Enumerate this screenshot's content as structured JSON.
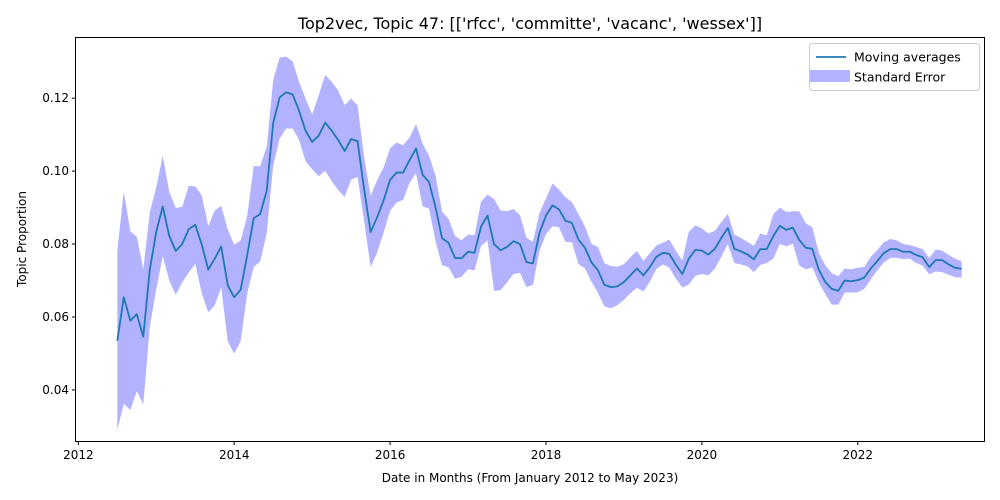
{
  "chart_data": {
    "type": "line",
    "title": "Top2vec, Topic 47: [['rfcc', 'committe', 'vacanc', 'wessex']]",
    "xlabel": "Date in Months (From January 2012 to May 2023)",
    "ylabel": "Topic Proportion",
    "xlim": [
      2011.97,
      2023.62
    ],
    "ylim": [
      0.026,
      0.1365
    ],
    "x_ticks": [
      2012,
      2014,
      2016,
      2018,
      2020,
      2022
    ],
    "y_ticks": [
      0.04,
      0.06,
      0.08,
      0.1,
      0.12
    ],
    "y_tick_labels": [
      "0.04",
      "0.06",
      "0.08",
      "0.10",
      "0.12"
    ],
    "legend": {
      "position": "top-right",
      "entries": [
        "Moving averages",
        "Standard Error"
      ]
    },
    "colors": {
      "line": "#1f77b4",
      "band": "#0000ff",
      "band_opacity": 0.3
    },
    "series": [
      {
        "name": "Moving averages",
        "x": [
          2012.5,
          2012.583,
          2012.667,
          2012.75,
          2012.833,
          2012.917,
          2013.0,
          2013.083,
          2013.167,
          2013.25,
          2013.333,
          2013.417,
          2013.5,
          2013.583,
          2013.667,
          2013.75,
          2013.833,
          2013.917,
          2014.0,
          2014.083,
          2014.167,
          2014.25,
          2014.333,
          2014.417,
          2014.5,
          2014.583,
          2014.667,
          2014.75,
          2014.833,
          2014.917,
          2015.0,
          2015.083,
          2015.167,
          2015.25,
          2015.333,
          2015.417,
          2015.5,
          2015.583,
          2015.667,
          2015.75,
          2015.833,
          2015.917,
          2016.0,
          2016.083,
          2016.167,
          2016.25,
          2016.333,
          2016.417,
          2016.5,
          2016.583,
          2016.667,
          2016.75,
          2016.833,
          2016.917,
          2017.0,
          2017.083,
          2017.167,
          2017.25,
          2017.333,
          2017.417,
          2017.5,
          2017.583,
          2017.667,
          2017.75,
          2017.833,
          2017.917,
          2018.0,
          2018.083,
          2018.167,
          2018.25,
          2018.333,
          2018.417,
          2018.5,
          2018.583,
          2018.667,
          2018.75,
          2018.833,
          2018.917,
          2019.0,
          2019.083,
          2019.167,
          2019.25,
          2019.333,
          2019.417,
          2019.5,
          2019.583,
          2019.667,
          2019.75,
          2019.833,
          2019.917,
          2020.0,
          2020.083,
          2020.167,
          2020.25,
          2020.333,
          2020.417,
          2020.5,
          2020.583,
          2020.667,
          2020.75,
          2020.833,
          2020.917,
          2021.0,
          2021.083,
          2021.167,
          2021.25,
          2021.333,
          2021.417,
          2021.5,
          2021.583,
          2021.667,
          2021.75,
          2021.833,
          2021.917,
          2022.0,
          2022.083,
          2022.167,
          2022.25,
          2022.333,
          2022.417,
          2022.5,
          2022.583,
          2022.667,
          2022.75,
          2022.833,
          2022.917,
          2023.0,
          2023.083,
          2023.167,
          2023.25,
          2023.333
        ],
        "y": [
          0.0535,
          0.0654,
          0.059,
          0.0608,
          0.0546,
          0.073,
          0.0834,
          0.0903,
          0.0822,
          0.0781,
          0.08,
          0.0841,
          0.0853,
          0.0799,
          0.073,
          0.076,
          0.0793,
          0.0687,
          0.0654,
          0.0675,
          0.077,
          0.0871,
          0.0882,
          0.0946,
          0.1132,
          0.1202,
          0.1216,
          0.121,
          0.1165,
          0.111,
          0.108,
          0.1097,
          0.1133,
          0.1111,
          0.1086,
          0.1055,
          0.1088,
          0.1082,
          0.095,
          0.0833,
          0.0873,
          0.092,
          0.0976,
          0.0996,
          0.0996,
          0.103,
          0.1062,
          0.099,
          0.097,
          0.09,
          0.0816,
          0.0803,
          0.0762,
          0.0761,
          0.0779,
          0.0776,
          0.0848,
          0.0878,
          0.08,
          0.0783,
          0.0792,
          0.0808,
          0.08,
          0.075,
          0.0747,
          0.0831,
          0.0878,
          0.0906,
          0.0895,
          0.0864,
          0.0858,
          0.0812,
          0.079,
          0.075,
          0.0728,
          0.0688,
          0.0682,
          0.0684,
          0.0696,
          0.0714,
          0.0733,
          0.0714,
          0.0737,
          0.0765,
          0.0776,
          0.0773,
          0.0743,
          0.0718,
          0.076,
          0.0784,
          0.0782,
          0.0771,
          0.0787,
          0.0817,
          0.0844,
          0.0787,
          0.078,
          0.0772,
          0.0758,
          0.0786,
          0.0786,
          0.0822,
          0.085,
          0.0839,
          0.0845,
          0.0811,
          0.079,
          0.0787,
          0.073,
          0.0696,
          0.0677,
          0.0672,
          0.07,
          0.0698,
          0.0701,
          0.0708,
          0.0733,
          0.0753,
          0.0775,
          0.0786,
          0.0786,
          0.0779,
          0.0779,
          0.077,
          0.0764,
          0.0737,
          0.0756,
          0.0756,
          0.0744,
          0.0735,
          0.0732
        ]
      },
      {
        "name": "Standard Error",
        "x": [
          2012.5,
          2012.583,
          2012.667,
          2012.75,
          2012.833,
          2012.917,
          2013.0,
          2013.083,
          2013.167,
          2013.25,
          2013.333,
          2013.417,
          2013.5,
          2013.583,
          2013.667,
          2013.75,
          2013.833,
          2013.917,
          2014.0,
          2014.083,
          2014.167,
          2014.25,
          2014.333,
          2014.417,
          2014.5,
          2014.583,
          2014.667,
          2014.75,
          2014.833,
          2014.917,
          2015.0,
          2015.083,
          2015.167,
          2015.25,
          2015.333,
          2015.417,
          2015.5,
          2015.583,
          2015.667,
          2015.75,
          2015.833,
          2015.917,
          2016.0,
          2016.083,
          2016.167,
          2016.25,
          2016.333,
          2016.417,
          2016.5,
          2016.583,
          2016.667,
          2016.75,
          2016.833,
          2016.917,
          2017.0,
          2017.083,
          2017.167,
          2017.25,
          2017.333,
          2017.417,
          2017.5,
          2017.583,
          2017.667,
          2017.75,
          2017.833,
          2017.917,
          2018.0,
          2018.083,
          2018.167,
          2018.25,
          2018.333,
          2018.417,
          2018.5,
          2018.583,
          2018.667,
          2018.75,
          2018.833,
          2018.917,
          2019.0,
          2019.083,
          2019.167,
          2019.25,
          2019.333,
          2019.417,
          2019.5,
          2019.583,
          2019.667,
          2019.75,
          2019.833,
          2019.917,
          2020.0,
          2020.083,
          2020.167,
          2020.25,
          2020.333,
          2020.417,
          2020.5,
          2020.583,
          2020.667,
          2020.75,
          2020.833,
          2020.917,
          2021.0,
          2021.083,
          2021.167,
          2021.25,
          2021.333,
          2021.417,
          2021.5,
          2021.583,
          2021.667,
          2021.75,
          2021.833,
          2021.917,
          2022.0,
          2022.083,
          2022.167,
          2022.25,
          2022.333,
          2022.417,
          2022.5,
          2022.583,
          2022.667,
          2022.75,
          2022.833,
          2022.917,
          2023.0,
          2023.083,
          2023.167,
          2023.25,
          2023.333
        ],
        "lower": [
          0.029,
          0.0362,
          0.0345,
          0.0397,
          0.036,
          0.0573,
          0.0677,
          0.0767,
          0.07,
          0.0661,
          0.0695,
          0.0722,
          0.0746,
          0.0665,
          0.0613,
          0.0632,
          0.0681,
          0.0533,
          0.05,
          0.0534,
          0.0665,
          0.0737,
          0.0752,
          0.0829,
          0.1015,
          0.1089,
          0.1117,
          0.1117,
          0.1085,
          0.1026,
          0.1005,
          0.0986,
          0.1001,
          0.0973,
          0.0948,
          0.0929,
          0.0977,
          0.0984,
          0.0863,
          0.0737,
          0.0776,
          0.0832,
          0.0891,
          0.0914,
          0.0921,
          0.0968,
          0.0994,
          0.0903,
          0.0897,
          0.0808,
          0.0742,
          0.0736,
          0.0705,
          0.071,
          0.0731,
          0.0728,
          0.0795,
          0.081,
          0.0672,
          0.0673,
          0.0695,
          0.0718,
          0.0721,
          0.0682,
          0.0688,
          0.0782,
          0.0827,
          0.0849,
          0.0846,
          0.0806,
          0.0805,
          0.0745,
          0.0733,
          0.0697,
          0.0666,
          0.0629,
          0.0624,
          0.0633,
          0.0647,
          0.0665,
          0.068,
          0.067,
          0.0697,
          0.0732,
          0.0744,
          0.0735,
          0.0705,
          0.0681,
          0.0689,
          0.0713,
          0.0718,
          0.0714,
          0.0733,
          0.0765,
          0.08,
          0.0748,
          0.0744,
          0.0739,
          0.0723,
          0.0743,
          0.0748,
          0.076,
          0.08,
          0.0794,
          0.0801,
          0.0741,
          0.0731,
          0.0736,
          0.0695,
          0.0663,
          0.0634,
          0.0634,
          0.0667,
          0.0667,
          0.0668,
          0.0677,
          0.0703,
          0.0728,
          0.0749,
          0.0762,
          0.0762,
          0.0759,
          0.076,
          0.0748,
          0.0741,
          0.0717,
          0.0725,
          0.0723,
          0.0716,
          0.0709,
          0.0708
        ],
        "upper": [
          0.0782,
          0.0944,
          0.0835,
          0.082,
          0.0731,
          0.0887,
          0.0956,
          0.1042,
          0.0943,
          0.0899,
          0.0902,
          0.096,
          0.0958,
          0.0934,
          0.0849,
          0.0892,
          0.0905,
          0.084,
          0.0798,
          0.081,
          0.0878,
          0.1014,
          0.1013,
          0.1067,
          0.125,
          0.1312,
          0.1314,
          0.1301,
          0.1244,
          0.1198,
          0.1155,
          0.1207,
          0.1264,
          0.1245,
          0.1221,
          0.1181,
          0.1199,
          0.118,
          0.1038,
          0.0932,
          0.0975,
          0.101,
          0.1063,
          0.1078,
          0.1071,
          0.1092,
          0.1129,
          0.1075,
          0.1042,
          0.0988,
          0.0889,
          0.0869,
          0.0822,
          0.081,
          0.0826,
          0.0824,
          0.0916,
          0.0936,
          0.0924,
          0.0892,
          0.089,
          0.0896,
          0.0879,
          0.0817,
          0.0806,
          0.0886,
          0.0925,
          0.0966,
          0.095,
          0.0928,
          0.0915,
          0.0882,
          0.0848,
          0.0801,
          0.0792,
          0.0747,
          0.074,
          0.0738,
          0.0745,
          0.0764,
          0.0781,
          0.0754,
          0.0775,
          0.0796,
          0.0804,
          0.0812,
          0.0781,
          0.0755,
          0.0834,
          0.0851,
          0.0843,
          0.0829,
          0.0836,
          0.086,
          0.0883,
          0.0826,
          0.0817,
          0.0806,
          0.0795,
          0.0829,
          0.0824,
          0.0882,
          0.09,
          0.0888,
          0.089,
          0.089,
          0.0857,
          0.0846,
          0.0776,
          0.0742,
          0.072,
          0.0712,
          0.0733,
          0.0731,
          0.0735,
          0.0737,
          0.0765,
          0.0783,
          0.0805,
          0.0814,
          0.081,
          0.08,
          0.0797,
          0.0792,
          0.0786,
          0.0762,
          0.0785,
          0.0782,
          0.077,
          0.076,
          0.0753
        ]
      }
    ]
  }
}
